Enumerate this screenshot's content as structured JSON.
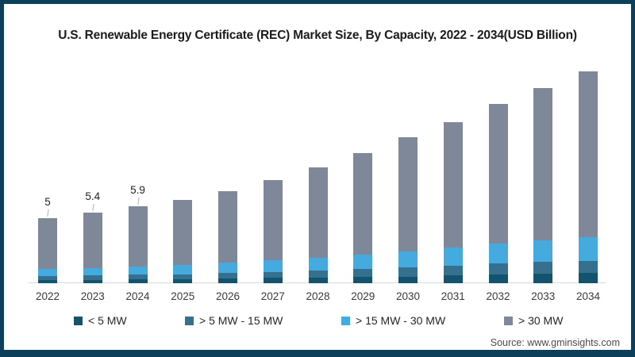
{
  "chart_data": {
    "type": "bar",
    "stacked": true,
    "title": "U.S. Renewable Energy Certificate (REC) Market Size, By Capacity, 2022 - 2034(USD Billion)",
    "xlabel": "",
    "ylabel": "",
    "categories": [
      "2022",
      "2023",
      "2024",
      "2025",
      "2026",
      "2027",
      "2028",
      "2029",
      "2030",
      "2031",
      "2032",
      "2033",
      "2034"
    ],
    "totals": [
      5.0,
      5.4,
      5.9,
      6.4,
      7.1,
      7.9,
      8.9,
      10.0,
      11.2,
      12.4,
      13.8,
      15.0,
      16.3
    ],
    "point_labels": [
      "5",
      "5.4",
      "5.9",
      null,
      null,
      null,
      null,
      null,
      null,
      null,
      null,
      null,
      null
    ],
    "series": [
      {
        "name": "< 5 MW",
        "color": "#12536d",
        "values": [
          0.25,
          0.27,
          0.3,
          0.32,
          0.36,
          0.4,
          0.44,
          0.5,
          0.51,
          0.62,
          0.69,
          0.75,
          0.82
        ]
      },
      {
        "name": "> 5 MW - 15 MW",
        "color": "#35708f",
        "values": [
          0.3,
          0.32,
          0.35,
          0.38,
          0.43,
          0.47,
          0.53,
          0.6,
          0.71,
          0.74,
          0.83,
          0.9,
          0.91
        ]
      },
      {
        "name": "> 15 MW - 30 MW",
        "color": "#45aadd",
        "values": [
          0.55,
          0.59,
          0.65,
          0.7,
          0.78,
          0.87,
          0.98,
          1.1,
          1.22,
          1.36,
          1.52,
          1.65,
          1.79
        ]
      },
      {
        "name": "> 30 MW",
        "color": "#7e8899",
        "values": [
          3.9,
          4.22,
          4.6,
          5.0,
          5.53,
          6.16,
          6.95,
          7.8,
          8.76,
          9.68,
          10.76,
          11.7,
          12.78
        ]
      }
    ],
    "legend_position": "bottom",
    "grid": false,
    "ylim": [
      0,
      17
    ]
  },
  "legend": {
    "items": [
      {
        "label": "< 5 MW",
        "color": "#12536d"
      },
      {
        "label": "> 5 MW - 15 MW",
        "color": "#35708f"
      },
      {
        "label": "> 15 MW - 30 MW",
        "color": "#45aadd"
      },
      {
        "label": "> 30 MW",
        "color": "#7e8899"
      }
    ]
  },
  "source": {
    "text": "Source: www.gminsights.com"
  },
  "colors": {
    "frame_border": "#0c3f5a",
    "axis_line": "#d9d9d9",
    "title_text": "#1b1b1b",
    "background": "#ffffff"
  }
}
